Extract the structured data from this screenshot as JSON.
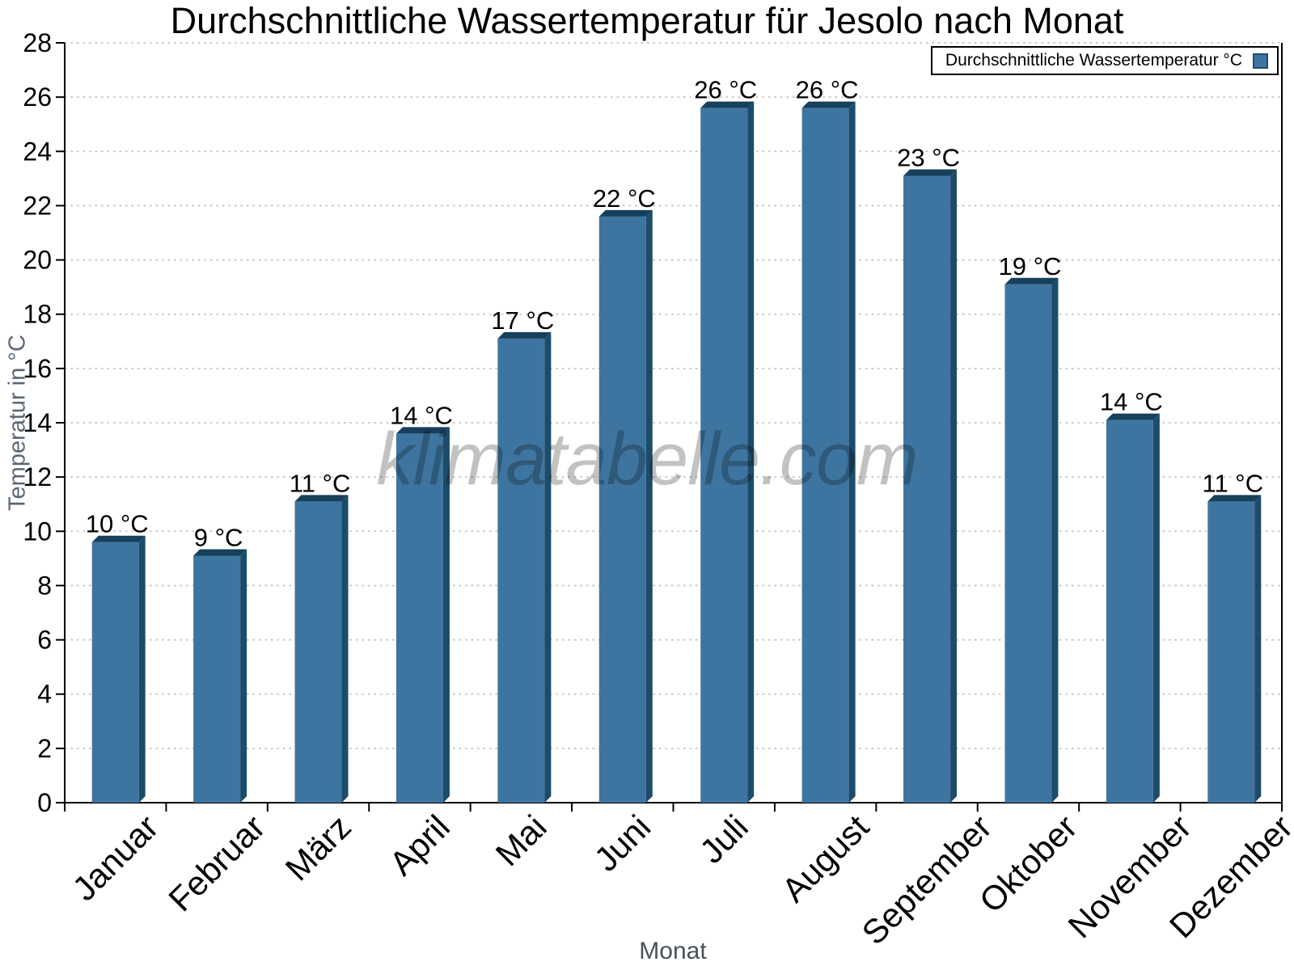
{
  "title": "Durchschnittliche Wassertemperatur für Jesolo nach Monat",
  "legend": {
    "label": "Durchschnittliche Wassertemperatur °C"
  },
  "watermark": "klimatabelle.com",
  "chart_data": {
    "type": "bar",
    "title": "Durchschnittliche Wassertemperatur für Jesolo nach Monat",
    "categories": [
      "Januar",
      "Februar",
      "März",
      "April",
      "Mai",
      "Juni",
      "Juli",
      "August",
      "September",
      "Oktober",
      "November",
      "Dezember"
    ],
    "series": [
      {
        "name": "Durchschnittliche Wassertemperatur °C",
        "values": [
          9.6,
          9.1,
          11.1,
          13.6,
          17.1,
          21.6,
          25.6,
          25.6,
          23.1,
          19.1,
          14.1,
          11.1
        ],
        "labels": [
          "10 °C",
          "9 °C",
          "11 °C",
          "14 °C",
          "17 °C",
          "22 °C",
          "26 °C",
          "26 °C",
          "23 °C",
          "19 °C",
          "14 °C",
          "11 °C"
        ]
      }
    ],
    "xlabel": "Monat",
    "ylabel": "Temperatur in °C",
    "ylim": [
      0,
      28
    ],
    "ytick_step": 2,
    "yticks": [
      0,
      2,
      4,
      6,
      8,
      10,
      12,
      14,
      16,
      18,
      20,
      22,
      24,
      26,
      28
    ],
    "grid": "horizontal-dotted",
    "legend_position": "top-right",
    "bar_style": "3d-bevel",
    "colors": {
      "bar_front": "#3e75a0",
      "bar_top": "#16405c",
      "bar_side": "#1d4c6a",
      "grid": "#c2c2c2",
      "axis": "#000000",
      "text": "#000000",
      "axis_title": "#5a6673",
      "x_title": "#47505a"
    }
  }
}
